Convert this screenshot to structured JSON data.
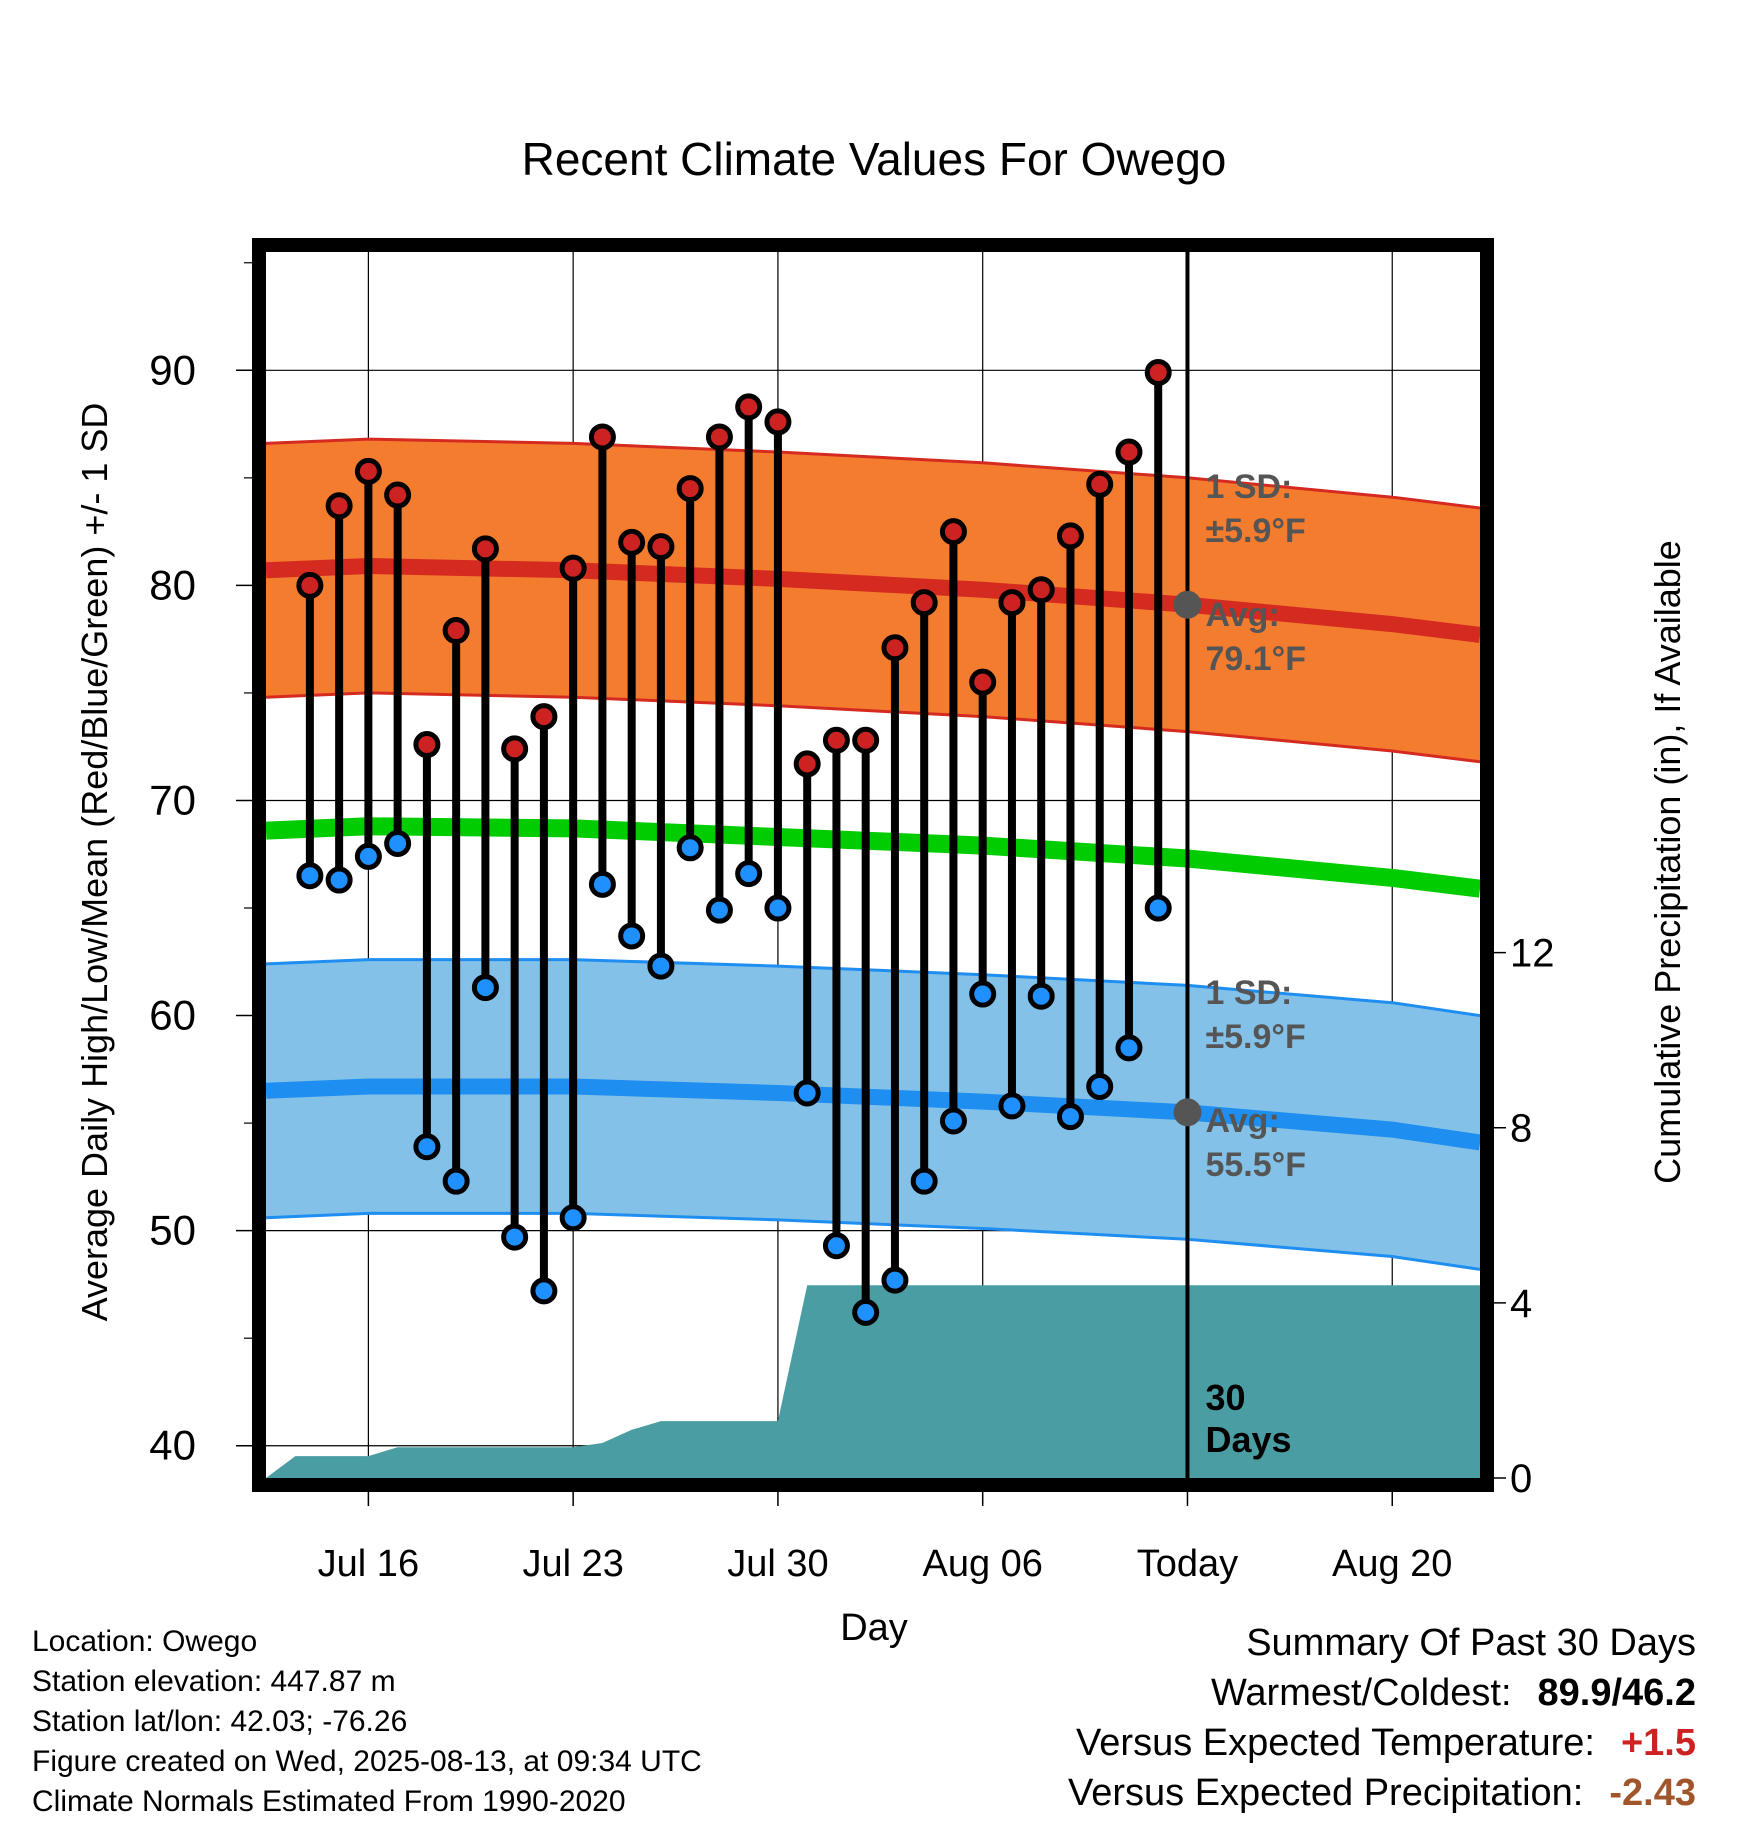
{
  "chart_data": {
    "type": "line",
    "title": "Recent Climate Values For Owego",
    "xlabel": "Day",
    "ylabel": "Average Daily High/Low/Mean (Red/Blue/Green) +/- 1 SD",
    "ylabel_right": "Cumulative Precipitation (in), If Available",
    "ylim": [
      38.5,
      95.5
    ],
    "ylim_right": [
      0,
      28
    ],
    "yticks": [
      40,
      50,
      60,
      70,
      80,
      90
    ],
    "yticks_right": [
      0,
      4,
      8,
      12
    ],
    "xlim": [
      -3.5,
      38
    ],
    "xticks": [
      {
        "day": 0,
        "label": "Jul 16"
      },
      {
        "day": 7,
        "label": "Jul 23"
      },
      {
        "day": 14,
        "label": "Jul 30"
      },
      {
        "day": 21,
        "label": "Aug 06"
      },
      {
        "day": 28,
        "label": "Today"
      },
      {
        "day": 35,
        "label": "Aug 20"
      }
    ],
    "grid": true,
    "daily": {
      "day": [
        -2,
        -1,
        0,
        1,
        2,
        3,
        4,
        5,
        6,
        7,
        8,
        9,
        10,
        11,
        12,
        13,
        14,
        15,
        16,
        17,
        18,
        19,
        20,
        21,
        22,
        23,
        24,
        25,
        26,
        27
      ],
      "high": [
        80.0,
        83.7,
        85.3,
        84.2,
        72.6,
        77.9,
        81.7,
        72.4,
        73.9,
        80.8,
        86.9,
        82.0,
        81.8,
        84.5,
        86.9,
        88.3,
        87.6,
        71.7,
        72.8,
        72.8,
        77.1,
        79.2,
        82.5,
        75.5,
        79.2,
        79.8,
        82.3,
        84.7,
        86.2,
        89.9
      ],
      "low": [
        66.5,
        66.3,
        67.4,
        68.0,
        53.9,
        52.3,
        61.3,
        49.7,
        47.2,
        50.6,
        66.1,
        63.7,
        62.3,
        67.8,
        64.9,
        66.6,
        65.0,
        56.4,
        49.3,
        46.2,
        47.7,
        52.3,
        55.1,
        61.0,
        55.8,
        60.9,
        55.3,
        56.7,
        58.5,
        65.0
      ]
    },
    "normals": {
      "day": [
        -3.5,
        0,
        7,
        14,
        21,
        28,
        35,
        38
      ],
      "high_avg": [
        80.7,
        80.9,
        80.7,
        80.3,
        79.8,
        79.1,
        78.2,
        77.7
      ],
      "low_avg": [
        56.5,
        56.7,
        56.7,
        56.4,
        56.0,
        55.5,
        54.7,
        54.1
      ],
      "mean_avg": [
        68.6,
        68.8,
        68.7,
        68.3,
        67.9,
        67.3,
        66.4,
        65.9
      ],
      "sd": 5.9
    },
    "precip": {
      "day": [
        -3.5,
        -2.5,
        -1,
        0,
        1,
        7,
        8,
        9,
        10,
        14,
        15,
        38
      ],
      "cumulative": [
        0,
        0.5,
        0.5,
        0.5,
        0.7,
        0.7,
        0.8,
        1.1,
        1.3,
        1.3,
        4.4,
        4.4
      ]
    },
    "annotations": {
      "high_sd_label": "1 SD:",
      "high_sd_value": "±5.9°F",
      "high_avg_label": "Avg:",
      "high_avg_value": "79.1°F",
      "low_sd_label": "1 SD:",
      "low_sd_value": "±5.9°F",
      "low_avg_label": "Avg:",
      "low_avg_value": "55.5°F",
      "period_value": "30",
      "period_unit": "Days"
    },
    "colors": {
      "high_band": "#f47c2e",
      "high_line": "#d42a20",
      "high_edge": "#d42a20",
      "low_band": "#84c1e8",
      "low_line": "#1e8ff0",
      "low_edge": "#1e8ff0",
      "mean_line": "#00cc00",
      "precip": "#4a9ea3",
      "high_dot": "#cc2222",
      "low_dot": "#1e90ff",
      "today_dot": "#555555"
    }
  },
  "footer": {
    "location": "Location: Owego",
    "elevation": "Station elevation: 447.87 m",
    "latlon": "Station lat/lon: 42.03; -76.26",
    "created": "Figure created on Wed, 2025-08-13, at 09:34 UTC",
    "normals": "Climate Normals Estimated From 1990-2020"
  },
  "summary": {
    "title": "Summary Of Past 30 Days",
    "extremes_label": "Warmest/Coldest:",
    "extremes_value": "89.9/46.2",
    "temp_label": "Versus Expected Temperature:",
    "temp_value": "+1.5",
    "precip_label": "Versus Expected Precipitation:",
    "precip_value": "-2.43"
  }
}
